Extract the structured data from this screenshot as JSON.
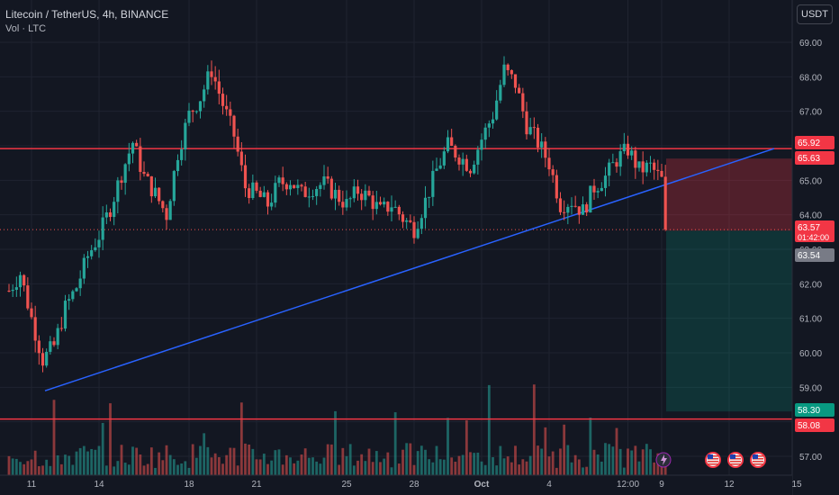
{
  "header": {
    "symbol_line": "Litecoin / TetherUS, 4h, BINANCE",
    "indicator_line": "Vol · LTC"
  },
  "currency_button": "USDT",
  "colors": {
    "background": "#131722",
    "grid": "#1f2330",
    "bull": "#26a69a",
    "bear": "#ef5350",
    "horizontal_line": "#f23645",
    "trendline": "#2962ff",
    "stop_zone": "rgba(242,54,69,0.28)",
    "target_zone": "rgba(8,153,129,0.22)"
  },
  "icons": [
    "lightning-icon",
    "us-flag-icon"
  ],
  "chart_data": {
    "type": "candlestick",
    "symbol": "Litecoin / TetherUS",
    "interval": "4h",
    "exchange": "BINANCE",
    "quote_currency": "USDT",
    "ylim": [
      56.7,
      69.6
    ],
    "y_ticks": [
      "57.00",
      "58.00",
      "59.00",
      "60.00",
      "61.00",
      "62.00",
      "63.00",
      "64.00",
      "65.00",
      "66.00",
      "67.00",
      "68.00",
      "69.00"
    ],
    "x_ticks": [
      {
        "label": "11",
        "day": 11
      },
      {
        "label": "14",
        "day": 14
      },
      {
        "label": "18",
        "day": 18
      },
      {
        "label": "21",
        "day": 21
      },
      {
        "label": "25",
        "day": 25
      },
      {
        "label": "28",
        "day": 28
      },
      {
        "label": "Oct",
        "day": 31
      },
      {
        "label": "4",
        "day": 34
      },
      {
        "label": "12:00",
        "day": 37.5
      },
      {
        "label": "9",
        "day": 39
      },
      {
        "label": "12",
        "day": 42
      },
      {
        "label": "15",
        "day": 45
      }
    ],
    "x_axis_note": "day values continue from September into October (day 31 = Oct 1)",
    "price_labels": [
      {
        "value": 65.92,
        "text": "65.92",
        "role": "resistance line"
      },
      {
        "value": 65.63,
        "text": "65.63",
        "role": "stop level"
      },
      {
        "value": 63.57,
        "text": "63.57",
        "sub": "01:42:00",
        "role": "last price"
      },
      {
        "value": 63.54,
        "text": "63.54",
        "role": "position entry"
      },
      {
        "value": 58.3,
        "text": "58.30",
        "role": "target level"
      },
      {
        "value": 58.08,
        "text": "58.08",
        "role": "support line"
      }
    ],
    "horizontal_lines": [
      65.92,
      58.08
    ],
    "trendline": {
      "from": {
        "day": 11.6,
        "price": 58.9
      },
      "to": {
        "day": 44.0,
        "price": 65.92
      }
    },
    "position": {
      "entry": 63.54,
      "stop": 65.63,
      "target": 58.3,
      "start_day": 39.2,
      "end_day": 45.4
    },
    "candles": [
      [
        65.8,
        65.6,
        66.9,
        67.3
      ],
      [
        66.3,
        66.1,
        67.5,
        67.9
      ],
      [
        67.4,
        67.0,
        68.0,
        68.3
      ],
      [
        67.9,
        67.4,
        67.6,
        68.0
      ],
      [
        67.6,
        67.3,
        67.1,
        67.8
      ],
      [
        67.0,
        66.9,
        67.0,
        67.6
      ],
      [
        67.2,
        66.8,
        66.6,
        67.4
      ],
      [
        66.7,
        66.4,
        65.8,
        67.0
      ],
      [
        65.9,
        65.7,
        66.1,
        66.3
      ],
      [
        66.0,
        65.8,
        65.7,
        66.2
      ],
      [
        65.7,
        65.4,
        65.2,
        65.9
      ],
      [
        65.3,
        64.2,
        64.4,
        65.5
      ],
      [
        64.5,
        64.1,
        63.9,
        64.8
      ],
      [
        64.0,
        63.7,
        63.8,
        64.2
      ]
    ],
    "candle_format": "open, low, close, high",
    "series": [
      {
        "role": "price",
        "points": [
          [
            10.0,
            61.8
          ],
          [
            10.5,
            62.3
          ],
          [
            11.0,
            61.0
          ],
          [
            11.5,
            59.8
          ],
          [
            12.0,
            60.2
          ],
          [
            12.5,
            61.3
          ],
          [
            13.0,
            61.9
          ],
          [
            13.5,
            62.8
          ],
          [
            14.0,
            63.4
          ],
          [
            14.5,
            64.2
          ],
          [
            15.0,
            65.2
          ],
          [
            15.5,
            66.1
          ],
          [
            16.0,
            65.1
          ],
          [
            16.5,
            64.6
          ],
          [
            17.0,
            64.0
          ],
          [
            17.5,
            65.8
          ],
          [
            18.0,
            66.9
          ],
          [
            18.5,
            67.4
          ],
          [
            19.0,
            68.2
          ],
          [
            19.5,
            67.2
          ],
          [
            20.0,
            66.3
          ],
          [
            20.5,
            64.8
          ],
          [
            21.0,
            64.6
          ],
          [
            21.5,
            64.3
          ],
          [
            22.0,
            64.9
          ],
          [
            22.5,
            65.0
          ],
          [
            23.0,
            64.6
          ],
          [
            23.5,
            64.8
          ],
          [
            24.0,
            64.9
          ],
          [
            24.5,
            64.6
          ],
          [
            25.0,
            64.3
          ],
          [
            25.5,
            64.7
          ],
          [
            26.0,
            64.5
          ],
          [
            26.5,
            64.1
          ],
          [
            27.0,
            64.3
          ],
          [
            27.5,
            63.9
          ],
          [
            28.0,
            63.6
          ],
          [
            28.5,
            64.4
          ],
          [
            29.0,
            65.3
          ],
          [
            29.5,
            66.0
          ],
          [
            30.0,
            65.7
          ],
          [
            30.5,
            65.4
          ],
          [
            31.0,
            66.2
          ],
          [
            31.5,
            66.9
          ],
          [
            32.0,
            68.2
          ],
          [
            32.5,
            67.8
          ],
          [
            33.0,
            66.6
          ],
          [
            33.5,
            66.1
          ],
          [
            34.0,
            65.5
          ],
          [
            34.5,
            64.3
          ],
          [
            35.0,
            64.4
          ],
          [
            35.5,
            64.1
          ],
          [
            36.0,
            64.8
          ],
          [
            36.5,
            65.1
          ],
          [
            37.0,
            65.6
          ],
          [
            37.5,
            65.9
          ],
          [
            38.0,
            65.3
          ],
          [
            38.5,
            65.4
          ],
          [
            39.0,
            65.0
          ],
          [
            39.2,
            63.57
          ]
        ]
      }
    ],
    "volume": "relative volume bars, colored by candle direction"
  }
}
